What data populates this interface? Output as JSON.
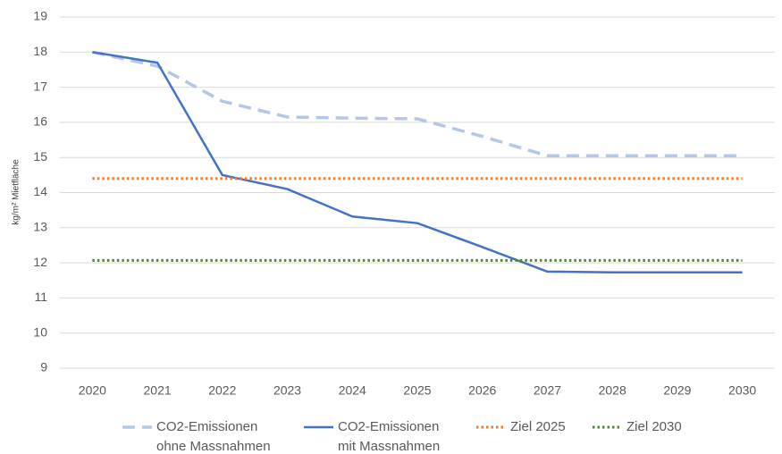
{
  "chart_data": {
    "type": "line",
    "y_label": "kg/m² Mietfläche",
    "categories": [
      "2020",
      "2021",
      "2022",
      "2023",
      "2024",
      "2025",
      "2026",
      "2027",
      "2028",
      "2029",
      "2030"
    ],
    "series": [
      {
        "name": "CO2-Emissionen\nohne Massnahmen",
        "color": "#b4c7e7",
        "style": "dashed",
        "values": [
          18,
          17.6,
          16.6,
          16.15,
          16.12,
          16.1,
          15.6,
          15.05,
          15.05,
          15.05,
          15.05
        ]
      },
      {
        "name": "CO2-Emissionen\nmit Massnahmen",
        "color": "#4472c4",
        "style": "solid",
        "values": [
          18,
          17.7,
          14.5,
          14.1,
          13.32,
          13.13,
          12.45,
          11.75,
          11.73,
          11.73,
          11.73
        ]
      },
      {
        "name": "Ziel 2025",
        "color": "#ed7d31",
        "style": "dotted",
        "values": [
          14.4,
          14.4,
          14.4,
          14.4,
          14.4,
          14.4,
          14.4,
          14.4,
          14.4,
          14.4,
          14.4
        ]
      },
      {
        "name": "Ziel 2030",
        "color": "#548235",
        "style": "dotted",
        "values": [
          12.07,
          12.07,
          12.07,
          12.07,
          12.07,
          12.07,
          12.07,
          12.07,
          12.07,
          12.07,
          12.07
        ]
      }
    ],
    "ylim": [
      9,
      19
    ],
    "yticks": [
      9,
      10,
      11,
      12,
      13,
      14,
      15,
      16,
      17,
      18,
      19
    ],
    "grid": true,
    "legend": "bottom"
  }
}
